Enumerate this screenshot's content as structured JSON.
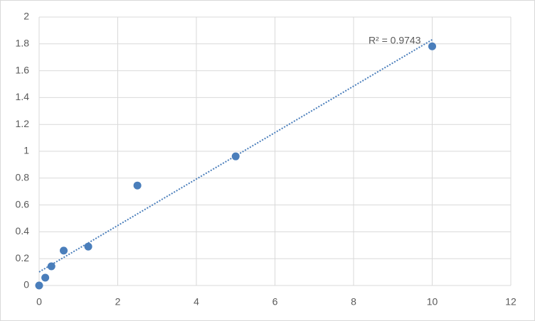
{
  "chart_data": {
    "type": "scatter",
    "series": [
      {
        "color": "#4a7ebb",
        "x": [
          0,
          0.156,
          0.3125,
          0.625,
          1.25,
          2.5,
          5,
          10
        ],
        "values": [
          0,
          0.058,
          0.143,
          0.26,
          0.29,
          0.745,
          0.962,
          1.782
        ]
      }
    ],
    "trendline": {
      "type": "linear",
      "style": "dotted",
      "label": "R² = 0.9743"
    },
    "xlim": [
      0,
      12
    ],
    "xticks": [
      0,
      2,
      4,
      6,
      8,
      10,
      12
    ],
    "ylim": [
      0,
      2
    ],
    "yticks": [
      0,
      0.2,
      0.4,
      0.6,
      0.8,
      1,
      1.2,
      1.4,
      1.6,
      1.8,
      2
    ],
    "grid": true
  }
}
